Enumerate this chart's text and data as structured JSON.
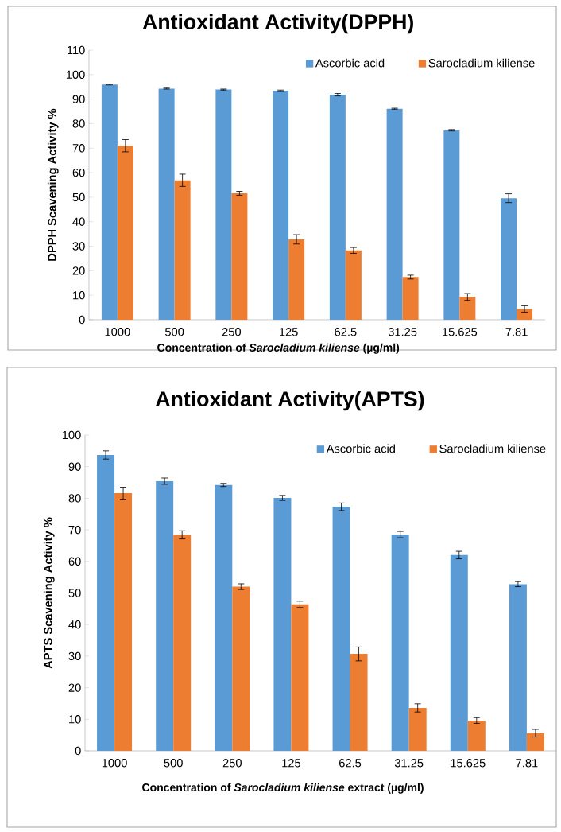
{
  "chart_data": [
    {
      "type": "bar",
      "title": "Antioxidant Activity(DPPH)",
      "xlabel": "Concentration of *Sarocladium kiliense* (µg/ml)",
      "ylabel": "DPPH Scavening Activity %",
      "categories": [
        "1000",
        "500",
        "250",
        "125",
        "62.5",
        "31.25",
        "15.625",
        "7.81"
      ],
      "series": [
        {
          "name": "Ascorbic acid",
          "color": "#5b9bd5",
          "values": [
            96,
            94.3,
            93.9,
            93.4,
            91.8,
            86.1,
            77.3,
            49.6
          ],
          "errors": [
            0.2,
            0.2,
            0.2,
            0.3,
            0.5,
            0.2,
            0.3,
            1.8
          ]
        },
        {
          "name": "Sarocladium kiliense",
          "color": "#ed7d31",
          "values": [
            71,
            56.9,
            51.6,
            32.8,
            28.3,
            17.4,
            9.3,
            4.4
          ],
          "errors": [
            2.5,
            2.5,
            0.8,
            1.9,
            1.2,
            0.8,
            1.4,
            1.3
          ]
        }
      ],
      "ylim": [
        0,
        110
      ],
      "yticks": [
        0,
        10,
        20,
        30,
        40,
        50,
        60,
        70,
        80,
        90,
        100,
        110
      ],
      "legend": "top right"
    },
    {
      "type": "bar",
      "title": "Antioxidant Activity(APTS)",
      "xlabel": "Concentration of *Sarocladium kiliense* extract (µg/ml)",
      "ylabel": "APTS Scavening Activity %",
      "categories": [
        "1000",
        "500",
        "250",
        "125",
        "62.5",
        "31.25",
        "15.625",
        "7.81"
      ],
      "series": [
        {
          "name": "Ascorbic acid",
          "color": "#5b9bd5",
          "values": [
            93.7,
            85.4,
            84.2,
            80.1,
            77.3,
            68.5,
            62,
            52.8
          ],
          "errors": [
            1.3,
            1.0,
            0.5,
            0.8,
            1.2,
            1.0,
            1.2,
            0.8
          ]
        },
        {
          "name": "Sarocladium kiliense",
          "color": "#ed7d31",
          "values": [
            81.6,
            68.4,
            52,
            46.4,
            30.7,
            13.6,
            9.6,
            5.6
          ],
          "errors": [
            1.9,
            1.3,
            0.9,
            1.0,
            2.2,
            1.3,
            0.9,
            1.2
          ]
        }
      ],
      "ylim": [
        0,
        100
      ],
      "yticks": [
        0,
        10,
        20,
        30,
        40,
        50,
        60,
        70,
        80,
        90,
        100
      ],
      "legend": "top right"
    }
  ]
}
